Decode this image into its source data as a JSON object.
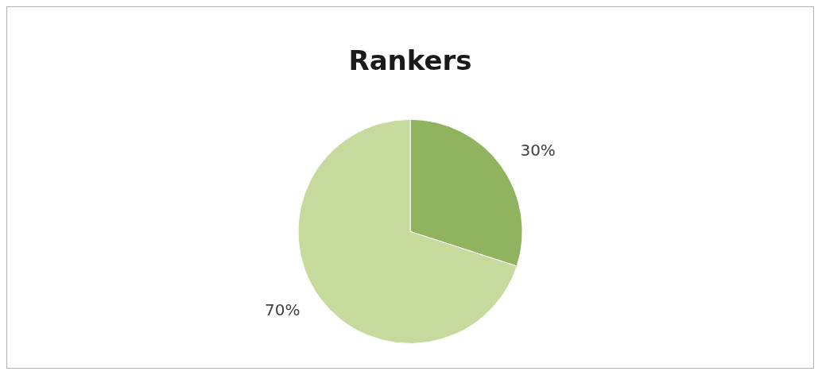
{
  "chart_data": {
    "type": "pie",
    "title": "Rankers",
    "categories": [
      null,
      null
    ],
    "values": [
      30,
      70
    ],
    "value_labels": [
      "30%",
      "70%"
    ],
    "colors": [
      "#8fb35e",
      "#c6da9e"
    ],
    "legend": false
  }
}
